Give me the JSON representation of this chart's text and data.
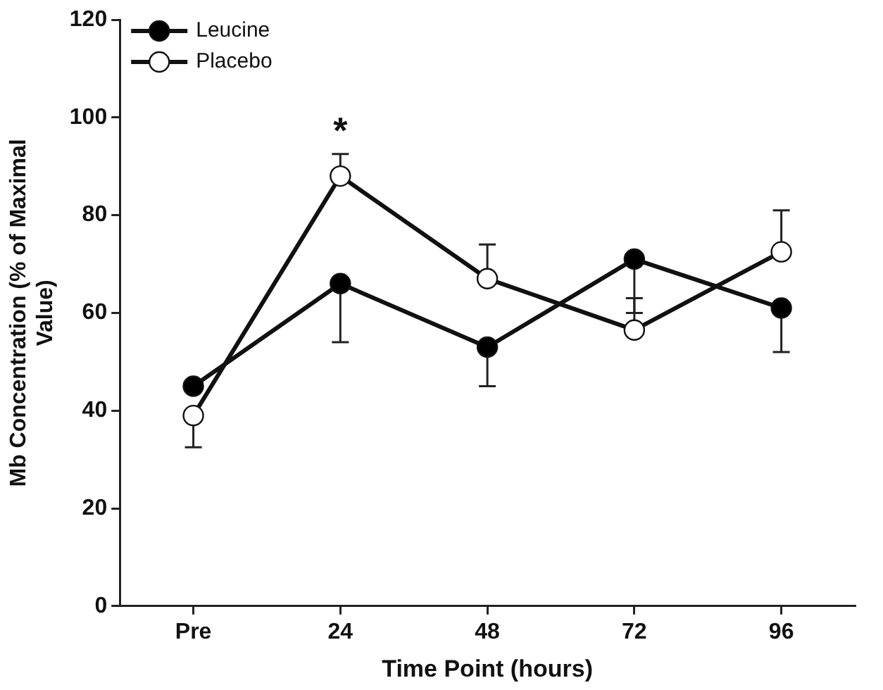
{
  "chart_data": {
    "type": "line",
    "xlabel": "Time Point (hours)",
    "ylabel": "Mb Concentration (% of Maximal Value)",
    "categories": [
      "Pre",
      "24",
      "48",
      "72",
      "96"
    ],
    "series": [
      {
        "name": "Leucine",
        "color": "#000000",
        "values": [
          45,
          66,
          53,
          71,
          61
        ],
        "errors": [
          null,
          [
            54,
            66
          ],
          [
            45,
            53
          ],
          [
            60,
            71
          ],
          [
            52,
            61
          ]
        ]
      },
      {
        "name": "Placebo",
        "color": "#ffffff",
        "values": [
          39,
          88,
          67,
          56.5,
          72.5
        ],
        "errors": [
          [
            32.5,
            39
          ],
          [
            88,
            92.5
          ],
          [
            67,
            74
          ],
          [
            56.5,
            63
          ],
          [
            72.5,
            81
          ]
        ]
      }
    ],
    "ylim": [
      0,
      120
    ],
    "yticks": [
      0,
      20,
      40,
      60,
      80,
      100,
      120
    ],
    "grid": false,
    "legend": "top left",
    "marker": "circle",
    "line_style": "solid",
    "annotations": [
      "*"
    ]
  }
}
